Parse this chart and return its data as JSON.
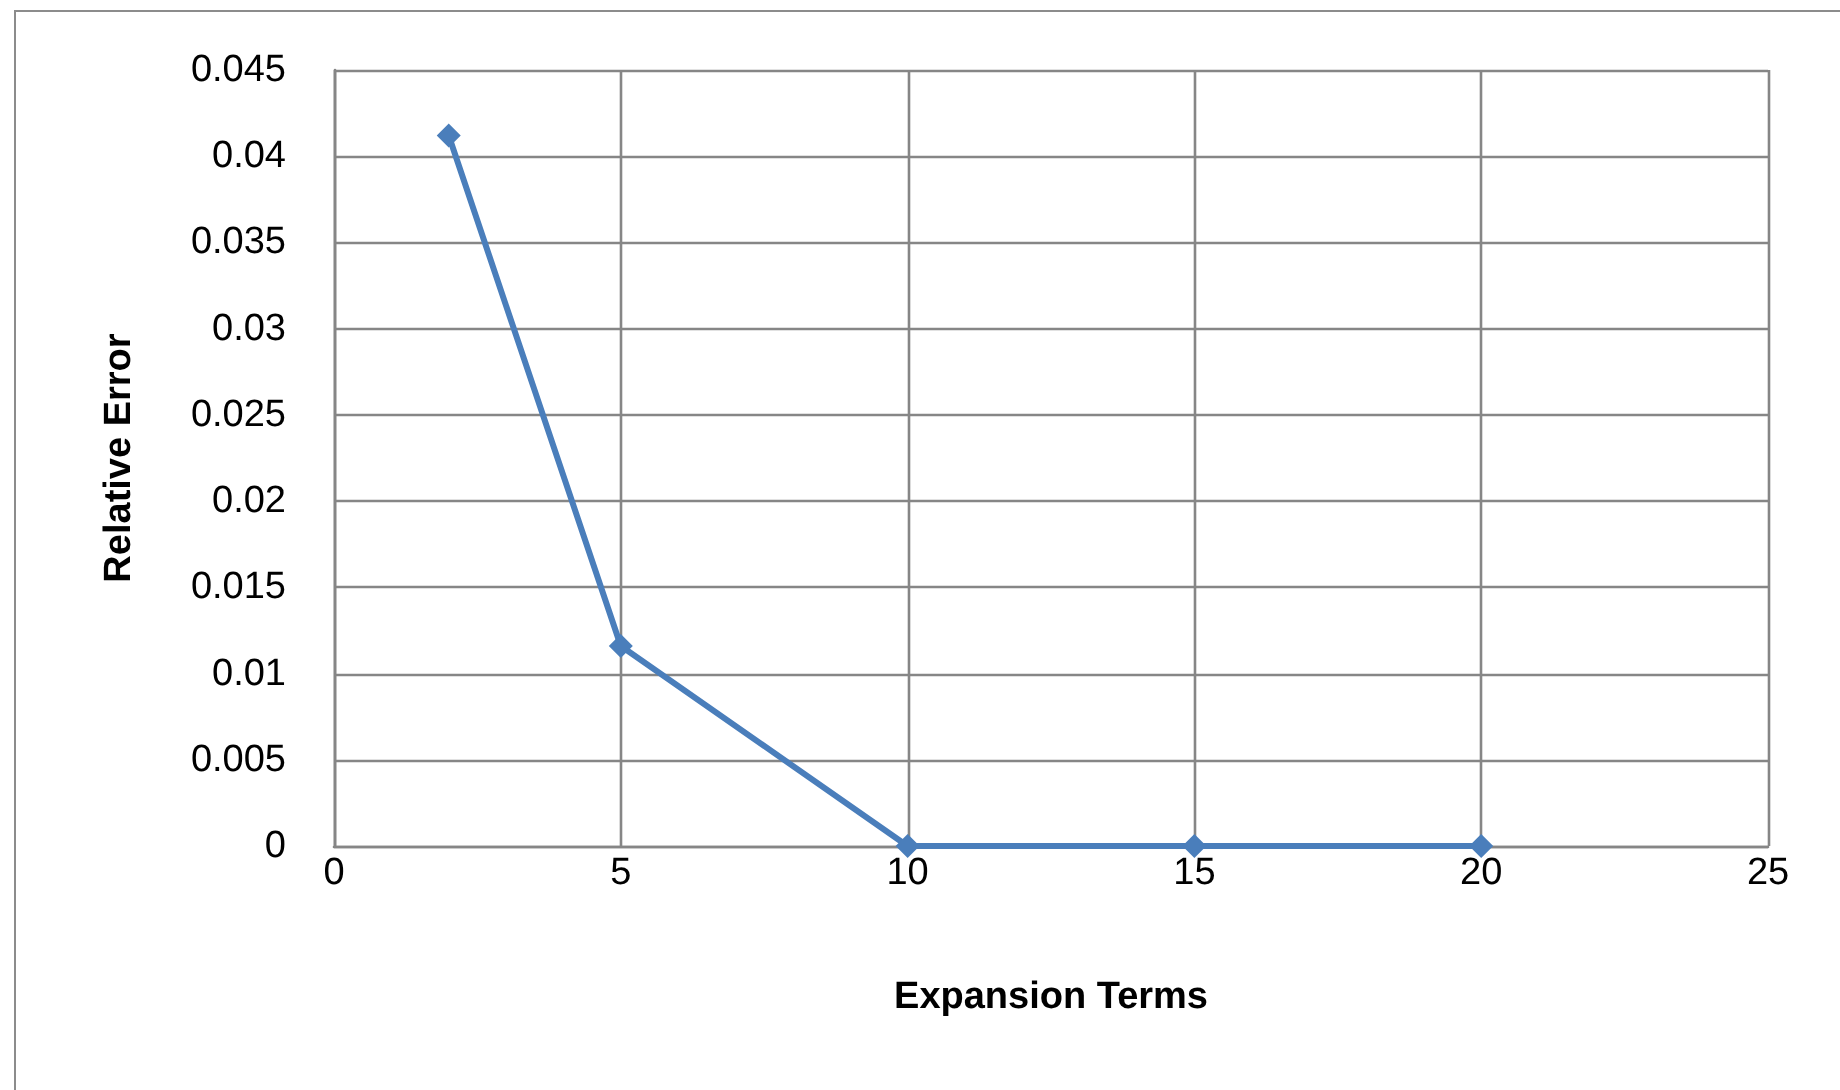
{
  "chart_data": {
    "type": "line",
    "xlabel": "Expansion Terms",
    "ylabel": "Relative Error",
    "x": [
      2,
      5,
      10,
      15,
      20
    ],
    "values": [
      0.0412,
      0.0116,
      0,
      0,
      0
    ],
    "color": "#4a7ebb",
    "xlim": [
      0,
      25
    ],
    "xticks": [
      0,
      5,
      10,
      15,
      20,
      25
    ],
    "ylim": [
      0,
      0.045
    ],
    "yticks": [
      0,
      0.005,
      0.01,
      0.015,
      0.02,
      0.025,
      0.03,
      0.035,
      0.04,
      0.045
    ],
    "grid": true,
    "marker": "diamond",
    "line_style": "solid"
  }
}
